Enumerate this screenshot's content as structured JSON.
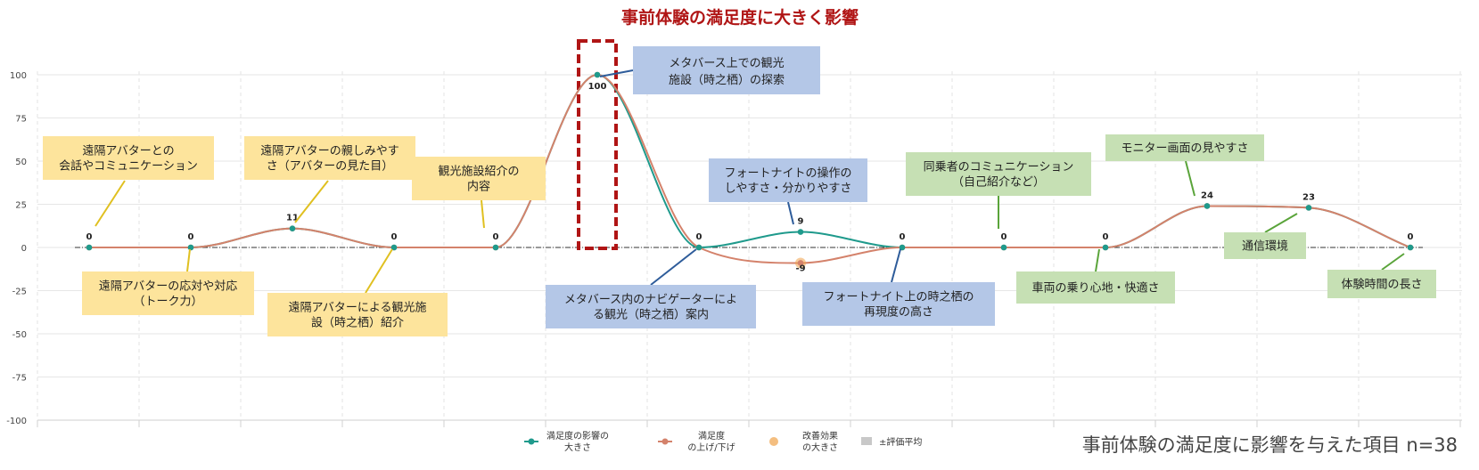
{
  "chart_data": {
    "type": "line",
    "title": "事前体験の満足度に大きく影響",
    "footnote": "事前体験の満足度に影響を与えた項目 n=38",
    "ylim": [
      -100,
      100
    ],
    "yticks": [
      "100",
      "75",
      "50",
      "25",
      "0",
      "-25",
      "-50",
      "-75",
      "-100"
    ],
    "grid": true,
    "legend_position": "bottom-right",
    "legend": [
      {
        "label": "満足度の影響の大きさ",
        "color": "#1f9a8c",
        "marker": "circle-line"
      },
      {
        "label": "満足度の上げ/下げ",
        "color": "#d4826b",
        "marker": "circle-line"
      },
      {
        "label": "改善効果の大きさ",
        "color": "#f0a24a",
        "marker": "dot"
      },
      {
        "label": "±評価平均",
        "color": "#c8c8c8",
        "marker": "square"
      }
    ],
    "series": [
      {
        "name": "満足度の影響の大きさ",
        "color": "#1f9a8c",
        "values": [
          0,
          0,
          11,
          0,
          0,
          100,
          0,
          9,
          0,
          0,
          0,
          24,
          23,
          0
        ]
      },
      {
        "name": "満足度の上げ/下げ",
        "color": "#d4826b",
        "values": [
          0,
          0,
          11,
          0,
          0,
          100,
          0,
          -9,
          0,
          0,
          0,
          24,
          23,
          0
        ]
      }
    ],
    "data_labels": [
      "0",
      "0",
      "11",
      "0",
      "0",
      "100",
      "0",
      "9",
      "0",
      "0",
      "0",
      "24",
      "23",
      "0"
    ],
    "neg_label": {
      "index": 7,
      "text": "-9"
    },
    "annotations": [
      {
        "lines": [
          "遠隔アバターとの",
          "会話やコミュニケーション"
        ],
        "color": "#fde49c",
        "line": "#e0c020"
      },
      {
        "lines": [
          "遠隔アバターの応対や対応",
          "（トーク力）"
        ],
        "color": "#fde49c",
        "line": "#e0c020"
      },
      {
        "lines": [
          "遠隔アバターの親しみやす",
          "さ（アバターの見た目）"
        ],
        "color": "#fde49c",
        "line": "#e0c020"
      },
      {
        "lines": [
          "遠隔アバターによる観光施",
          "設（時之栖）紹介"
        ],
        "color": "#fde49c",
        "line": "#e0c020"
      },
      {
        "lines": [
          "観光施設紹介の",
          "内容"
        ],
        "color": "#fde49c",
        "line": "#e0c020"
      },
      {
        "lines": [
          "メタバース上での観光",
          "施設（時之栖）の探索"
        ],
        "color": "#b4c7e7",
        "line": "#2e5c9a"
      },
      {
        "lines": [
          "メタバース内のナビゲーターによ",
          "る観光（時之栖）案内"
        ],
        "color": "#b4c7e7",
        "line": "#2e5c9a"
      },
      {
        "lines": [
          "フォートナイトの操作の",
          "しやすさ・分かりやすさ"
        ],
        "color": "#b4c7e7",
        "line": "#2e5c9a"
      },
      {
        "lines": [
          "フォートナイト上の時之栖の",
          "再現度の高さ"
        ],
        "color": "#b4c7e7",
        "line": "#2e5c9a"
      },
      {
        "lines": [
          "同乗者のコミュニケーション",
          "（自己紹介など）"
        ],
        "color": "#c6e0b4",
        "line": "#5aa43a"
      },
      {
        "lines": [
          "車両の乗り心地・快適さ"
        ],
        "color": "#c6e0b4",
        "line": "#5aa43a"
      },
      {
        "lines": [
          "モニター画面の見やすさ"
        ],
        "color": "#c6e0b4",
        "line": "#5aa43a"
      },
      {
        "lines": [
          "通信環境"
        ],
        "color": "#c6e0b4",
        "line": "#5aa43a"
      },
      {
        "lines": [
          "体験時間の長さ"
        ],
        "color": "#c6e0b4",
        "line": "#5aa43a"
      }
    ],
    "highlight": {
      "index": 5,
      "color": "#b01515"
    }
  }
}
